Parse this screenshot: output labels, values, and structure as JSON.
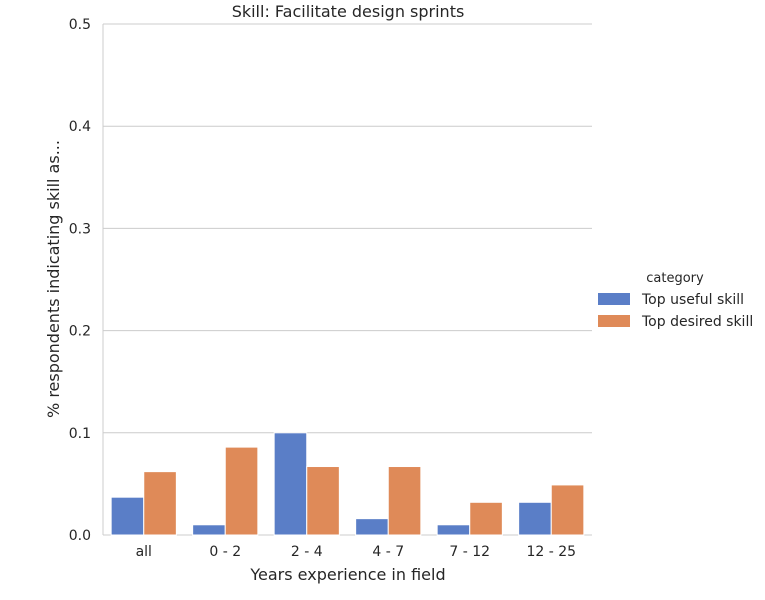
{
  "chart_data": {
    "type": "bar",
    "title": "Skill: Facilitate design sprints",
    "xlabel": "Years experience in field",
    "ylabel": "% respondents indicating skill as...",
    "categories": [
      "all",
      "0 - 2",
      "2 - 4",
      "4 - 7",
      "7 - 12",
      "12 - 25"
    ],
    "series": [
      {
        "name": "Top useful skill",
        "values": [
          0.037,
          0.01,
          0.1,
          0.016,
          0.01,
          0.032
        ]
      },
      {
        "name": "Top desired skill",
        "values": [
          0.062,
          0.086,
          0.067,
          0.067,
          0.032,
          0.049
        ]
      }
    ],
    "ylim": [
      0,
      0.5
    ],
    "yticks": [
      "0.0",
      "0.1",
      "0.2",
      "0.3",
      "0.4",
      "0.5"
    ],
    "grid": "horizontal",
    "legend": {
      "title": "category",
      "placement": "right"
    },
    "colors": {
      "Top useful skill": "#5a7ec7",
      "Top desired skill": "#df8a58"
    }
  }
}
